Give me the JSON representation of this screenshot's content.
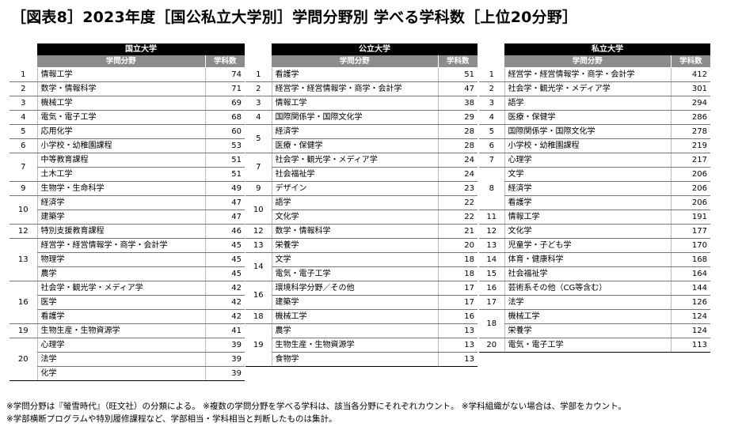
{
  "title": "［図表8］2023年度［国公私立大学別］学問分野別 学べる学科数［上位20分野］",
  "header_field": "学問分野",
  "header_count": "学科数",
  "blocks": [
    {
      "name": "国立大学",
      "rows": [
        {
          "rank": "1",
          "field": "情報工学",
          "count": "74"
        },
        {
          "rank": "2",
          "field": "数学・情報科学",
          "count": "71"
        },
        {
          "rank": "3",
          "field": "機械工学",
          "count": "69"
        },
        {
          "rank": "4",
          "field": "電気・電子工学",
          "count": "68"
        },
        {
          "rank": "5",
          "field": "応用化学",
          "count": "60"
        },
        {
          "rank": "6",
          "field": "小学校・幼稚園課程",
          "count": "53"
        },
        {
          "rank": "7",
          "field": "中等教育課程",
          "count": "51"
        },
        {
          "rank": "",
          "field": "土木工学",
          "count": "51"
        },
        {
          "rank": "9",
          "field": "生物学・生命科学",
          "count": "49"
        },
        {
          "rank": "10",
          "field": "経済学",
          "count": "47"
        },
        {
          "rank": "",
          "field": "建築学",
          "count": "47"
        },
        {
          "rank": "12",
          "field": "特別支援教育課程",
          "count": "46"
        },
        {
          "rank": "13",
          "field": "経営学・経営情報学・商学・会計学",
          "count": "45"
        },
        {
          "rank": "",
          "field": "物理学",
          "count": "45"
        },
        {
          "rank": "",
          "field": "農学",
          "count": "45"
        },
        {
          "rank": "16",
          "field": "社会学・観光学・メディア学",
          "count": "42"
        },
        {
          "rank": "",
          "field": "医学",
          "count": "42"
        },
        {
          "rank": "",
          "field": "看護学",
          "count": "42"
        },
        {
          "rank": "19",
          "field": "生物生産・生物資源学",
          "count": "41"
        },
        {
          "rank": "20",
          "field": "心理学",
          "count": "39"
        },
        {
          "rank": "",
          "field": "法学",
          "count": "39"
        },
        {
          "rank": "",
          "field": "化学",
          "count": "39"
        }
      ]
    },
    {
      "name": "公立大学",
      "rows": [
        {
          "rank": "1",
          "field": "看護学",
          "count": "51"
        },
        {
          "rank": "2",
          "field": "経営学・経営情報学・商学・会計学",
          "count": "47"
        },
        {
          "rank": "3",
          "field": "情報工学",
          "count": "38"
        },
        {
          "rank": "4",
          "field": "国際関係学・国際文化学",
          "count": "29"
        },
        {
          "rank": "5",
          "field": "経済学",
          "count": "28"
        },
        {
          "rank": "",
          "field": "医療・保健学",
          "count": "28"
        },
        {
          "rank": "7",
          "field": "社会学・観光学・メディア学",
          "count": "24"
        },
        {
          "rank": "",
          "field": "社会福祉学",
          "count": "24"
        },
        {
          "rank": "9",
          "field": "デザイン",
          "count": "23"
        },
        {
          "rank": "10",
          "field": "語学",
          "count": "22"
        },
        {
          "rank": "",
          "field": "文化学",
          "count": "22"
        },
        {
          "rank": "12",
          "field": "数学・情報科学",
          "count": "21"
        },
        {
          "rank": "13",
          "field": "栄養学",
          "count": "20"
        },
        {
          "rank": "14",
          "field": "文学",
          "count": "18"
        },
        {
          "rank": "",
          "field": "電気・電子工学",
          "count": "18"
        },
        {
          "rank": "16",
          "field": "環境科学分野／その他",
          "count": "17"
        },
        {
          "rank": "",
          "field": "建築学",
          "count": "17"
        },
        {
          "rank": "18",
          "field": "機械工学",
          "count": "16"
        },
        {
          "rank": "19",
          "field": "農学",
          "count": "13"
        },
        {
          "rank": "",
          "field": "生物生産・生物資源学",
          "count": "13"
        },
        {
          "rank": "",
          "field": "食物学",
          "count": "13"
        }
      ]
    },
    {
      "name": "私立大学",
      "rows": [
        {
          "rank": "1",
          "field": "経営学・経営情報学・商学・会計学",
          "count": "412"
        },
        {
          "rank": "2",
          "field": "社会学・観光学・メディア学",
          "count": "301"
        },
        {
          "rank": "3",
          "field": "語学",
          "count": "294"
        },
        {
          "rank": "4",
          "field": "医療・保健学",
          "count": "286"
        },
        {
          "rank": "5",
          "field": "国際関係学・国際文化学",
          "count": "278"
        },
        {
          "rank": "6",
          "field": "小学校・幼稚園課程",
          "count": "219"
        },
        {
          "rank": "7",
          "field": "心理学",
          "count": "217"
        },
        {
          "rank": "8",
          "field": "文学",
          "count": "206"
        },
        {
          "rank": "",
          "field": "経済学",
          "count": "206"
        },
        {
          "rank": "",
          "field": "看護学",
          "count": "206"
        },
        {
          "rank": "11",
          "field": "情報工学",
          "count": "191"
        },
        {
          "rank": "12",
          "field": "文化学",
          "count": "177"
        },
        {
          "rank": "13",
          "field": "児童学・子ども学",
          "count": "170"
        },
        {
          "rank": "14",
          "field": "体育・健康科学",
          "count": "168"
        },
        {
          "rank": "15",
          "field": "社会福祉学",
          "count": "164"
        },
        {
          "rank": "16",
          "field": "芸術系その他（CG等含む）",
          "count": "144"
        },
        {
          "rank": "17",
          "field": "法学",
          "count": "126"
        },
        {
          "rank": "18",
          "field": "機械工学",
          "count": "124"
        },
        {
          "rank": "",
          "field": "栄養学",
          "count": "124"
        },
        {
          "rank": "20",
          "field": "電気・電子工学",
          "count": "113"
        }
      ]
    }
  ],
  "notes": [
    "※学問分野は『螢雪時代』（旺文社）の分類による。 ※複数の学問分野を学べる学科は、該当各分野にそれぞれカウント。 ※学科組織がない場合は、学部をカウント。",
    "※学部横断プログラムや特別履修課程など、学部相当・学科相当と判断したものは集計。"
  ]
}
